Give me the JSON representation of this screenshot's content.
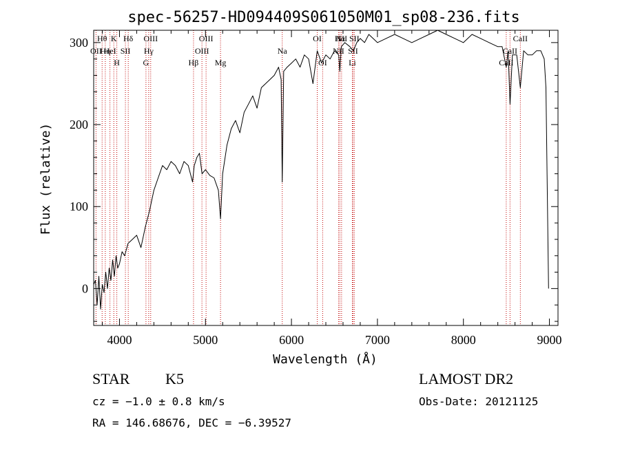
{
  "chart_data": {
    "type": "line",
    "title": "spec-56257-HD094409S061050M01_sp08-236.fits",
    "xlabel": "Wavelength (Å)",
    "ylabel": "Flux (relative)",
    "xlim": [
      3700,
      9100
    ],
    "ylim": [
      -45,
      315
    ],
    "x_ticks": [
      4000,
      5000,
      6000,
      7000,
      8000,
      9000
    ],
    "y_ticks": [
      0,
      100,
      200,
      300
    ],
    "series": [
      {
        "x": [
          3700,
          3720,
          3740,
          3760,
          3780,
          3800,
          3820,
          3840,
          3860,
          3880,
          3900,
          3920,
          3940,
          3960,
          3980,
          4000,
          4030,
          4060,
          4100,
          4150,
          4200,
          4250,
          4300,
          4350,
          4400,
          4450,
          4500,
          4550,
          4600,
          4650,
          4700,
          4750,
          4800,
          4850,
          4870,
          4900,
          4930,
          4960,
          5000,
          5050,
          5100,
          5150,
          5175,
          5200,
          5250,
          5300,
          5350,
          5400,
          5450,
          5500,
          5550,
          5600,
          5650,
          5700,
          5750,
          5800,
          5850,
          5880,
          5893,
          5910,
          5950,
          6000,
          6050,
          6100,
          6150,
          6200,
          6250,
          6300,
          6350,
          6400,
          6450,
          6500,
          6550,
          6563,
          6580,
          6620,
          6680,
          6720,
          6760,
          6800,
          6850,
          6900,
          6950,
          7000,
          7100,
          7200,
          7300,
          7400,
          7500,
          7600,
          7700,
          7800,
          7900,
          8000,
          8100,
          8200,
          8300,
          8400,
          8450,
          8498,
          8520,
          8542,
          8570,
          8620,
          8662,
          8700,
          8750,
          8800,
          8850,
          8900,
          8940,
          8960,
          8990
        ],
        "y": [
          5,
          10,
          -20,
          15,
          -25,
          5,
          -5,
          20,
          0,
          25,
          10,
          35,
          15,
          40,
          25,
          30,
          45,
          40,
          55,
          60,
          65,
          50,
          75,
          95,
          120,
          135,
          150,
          145,
          155,
          150,
          140,
          155,
          150,
          130,
          150,
          160,
          165,
          140,
          145,
          138,
          135,
          120,
          85,
          140,
          175,
          195,
          205,
          190,
          215,
          225,
          235,
          220,
          245,
          250,
          255,
          260,
          270,
          255,
          130,
          265,
          270,
          275,
          280,
          270,
          285,
          280,
          250,
          290,
          275,
          285,
          280,
          290,
          285,
          265,
          295,
          300,
          295,
          290,
          300,
          305,
          300,
          310,
          305,
          300,
          305,
          310,
          305,
          300,
          305,
          310,
          315,
          310,
          305,
          300,
          310,
          305,
          300,
          295,
          295,
          270,
          290,
          225,
          285,
          285,
          245,
          290,
          285,
          285,
          290,
          290,
          280,
          245,
          0
        ]
      }
    ],
    "line_markers": [
      {
        "wave": 3727,
        "label": "OII",
        "row": 1
      },
      {
        "wave": 3798,
        "label": "Hθ",
        "row": 0
      },
      {
        "wave": 3835,
        "label": "Hη",
        "row": 1
      },
      {
        "wave": 3889,
        "label": "HeI",
        "row": 1
      },
      {
        "wave": 3934,
        "label": "K",
        "row": 0
      },
      {
        "wave": 3969,
        "label": "H",
        "row": 2
      },
      {
        "wave": 4069,
        "label": "SII",
        "row": 1
      },
      {
        "wave": 4102,
        "label": "Hδ",
        "row": 0
      },
      {
        "wave": 4308,
        "label": "G",
        "row": 2
      },
      {
        "wave": 4340,
        "label": "Hγ",
        "row": 1
      },
      {
        "wave": 4363,
        "label": "OIII",
        "row": 0
      },
      {
        "wave": 4861,
        "label": "Hβ",
        "row": 2
      },
      {
        "wave": 4959,
        "label": "OIII",
        "row": 1
      },
      {
        "wave": 5007,
        "label": "OIII",
        "row": 0
      },
      {
        "wave": 5175,
        "label": "Mg",
        "row": 2
      },
      {
        "wave": 5893,
        "label": "Na",
        "row": 1
      },
      {
        "wave": 6300,
        "label": "OI",
        "row": 0
      },
      {
        "wave": 6363,
        "label": "OI",
        "row": 2
      },
      {
        "wave": 6548,
        "label": "NII",
        "row": 1
      },
      {
        "wave": 6563,
        "label": "Hα",
        "row": 0
      },
      {
        "wave": 6583,
        "label": "NII",
        "row": 0
      },
      {
        "wave": 6708,
        "label": "Li",
        "row": 2
      },
      {
        "wave": 6716,
        "label": "SII",
        "row": 1
      },
      {
        "wave": 6731,
        "label": "SII",
        "row": 0
      },
      {
        "wave": 8498,
        "label": "CaII",
        "row": 2
      },
      {
        "wave": 8542,
        "label": "CaII",
        "row": 1
      },
      {
        "wave": 8662,
        "label": "CaII",
        "row": 0
      }
    ]
  },
  "info": {
    "object_type": "STAR",
    "subclass": "K5",
    "survey": "LAMOST DR2",
    "redshift": "cz = −1.0 ± 0.8 km/s",
    "obs_date": "Obs-Date: 20121125",
    "coords": "RA = 146.68676, DEC =  −6.39527"
  }
}
